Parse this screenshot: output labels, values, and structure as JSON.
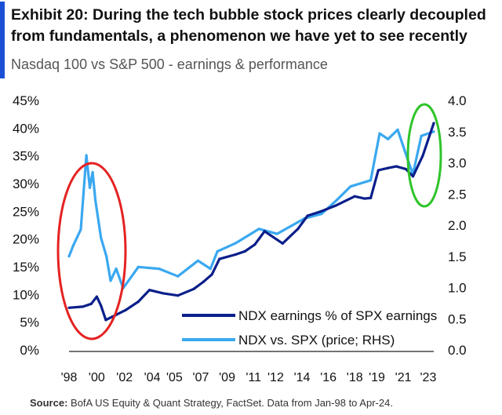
{
  "title": "Exhibit 20: During the tech bubble stock prices clearly decoupled from fundamentals, a phenomenon we have yet to see recently",
  "subtitle": "Nasdaq 100 vs S&P 500 - earnings & performance",
  "source_label": "Source:",
  "source_text": "BofA US Equity & Quant Strategy, FactSet. Data from Jan-98 to Apr-24.",
  "colors": {
    "accent_bar": "#1a4fd6",
    "earnings": "#0b1f8a",
    "price": "#3aa8f0",
    "highlight_bubble": "#e52222",
    "highlight_recent": "#2fc42a"
  },
  "chart_data": {
    "type": "line",
    "xlabel": "",
    "ylabel": "",
    "y2label": "",
    "xlim": [
      1998,
      2024.3
    ],
    "ylim": [
      0,
      45
    ],
    "y2lim": [
      0,
      4
    ],
    "yticks": [
      "0%",
      "5%",
      "10%",
      "15%",
      "20%",
      "25%",
      "30%",
      "35%",
      "40%",
      "45%"
    ],
    "y2ticks": [
      "0.0",
      "0.5",
      "1.0",
      "1.5",
      "2.0",
      "2.5",
      "3.0",
      "3.5",
      "4.0"
    ],
    "xticks": [
      {
        "label": "'98",
        "year": 1998
      },
      {
        "label": "'00",
        "year": 2000
      },
      {
        "label": "'02",
        "year": 2002
      },
      {
        "label": "'04",
        "year": 2004
      },
      {
        "label": "'05",
        "year": 2005.6
      },
      {
        "label": "'07",
        "year": 2007.5
      },
      {
        "label": "'09",
        "year": 2009.4
      },
      {
        "label": "'11",
        "year": 2011.3
      },
      {
        "label": "'12",
        "year": 2012.9
      },
      {
        "label": "'14",
        "year": 2014.8
      },
      {
        "label": "'16",
        "year": 2016.7
      },
      {
        "label": "'18",
        "year": 2018.6
      },
      {
        "label": "'19",
        "year": 2020.2
      },
      {
        "label": "'21",
        "year": 2022.1
      },
      {
        "label": "'23",
        "year": 2023.9
      }
    ],
    "grid": false,
    "legend_position": "bottom-right",
    "series": [
      {
        "name": "NDX earnings % of SPX earnings",
        "axis": "left",
        "color": "#0b1f8a",
        "x": [
          1998,
          1999,
          1999.6,
          2000,
          2000.3,
          2000.65,
          2001.3,
          2002.1,
          2003,
          2003.8,
          2004.8,
          2005.85,
          2007,
          2007.7,
          2008.3,
          2008.85,
          2010,
          2010.7,
          2011.4,
          2012.1,
          2013.4,
          2014.5,
          2015.2,
          2016.2,
          2017.2,
          2018.6,
          2019.3,
          2019.75,
          2020.3,
          2021,
          2021.6,
          2022.3,
          2022.8,
          2023.5,
          2024.3
        ],
        "y": [
          7.6,
          7.8,
          8.3,
          9.6,
          8.0,
          5.4,
          6.2,
          7.2,
          8.7,
          10.8,
          10.2,
          9.8,
          11.0,
          12.3,
          13.6,
          16.4,
          17.2,
          17.8,
          19.0,
          21.4,
          19.2,
          21.8,
          24.2,
          25.0,
          26.0,
          27.7,
          27.3,
          27.4,
          32.4,
          32.8,
          33.1,
          32.6,
          31.3,
          35.0,
          40.9
        ]
      },
      {
        "name": "NDX vs. SPX (price; RHS)",
        "axis": "right",
        "color": "#3aa8f0",
        "x": [
          1998,
          1998.3,
          1998.85,
          1999.25,
          1999.5,
          1999.7,
          1999.9,
          2000.3,
          2000.7,
          2001.0,
          2001.4,
          2001.9,
          2003,
          2004.5,
          2005.85,
          2007.3,
          2008.2,
          2008.7,
          2010,
          2011.7,
          2013,
          2015,
          2016.2,
          2017.3,
          2018.3,
          2019.75,
          2020.4,
          2021,
          2021.7,
          2022.5,
          2022.8,
          2023.4,
          2024.3
        ],
        "y": [
          1.5,
          1.67,
          1.93,
          3.12,
          2.6,
          2.85,
          2.4,
          1.8,
          1.5,
          1.11,
          1.3,
          0.99,
          1.33,
          1.3,
          1.18,
          1.43,
          1.3,
          1.58,
          1.71,
          1.94,
          1.86,
          2.11,
          2.18,
          2.4,
          2.62,
          2.72,
          3.47,
          3.38,
          3.53,
          3.0,
          2.82,
          3.43,
          3.5
        ]
      }
    ]
  }
}
